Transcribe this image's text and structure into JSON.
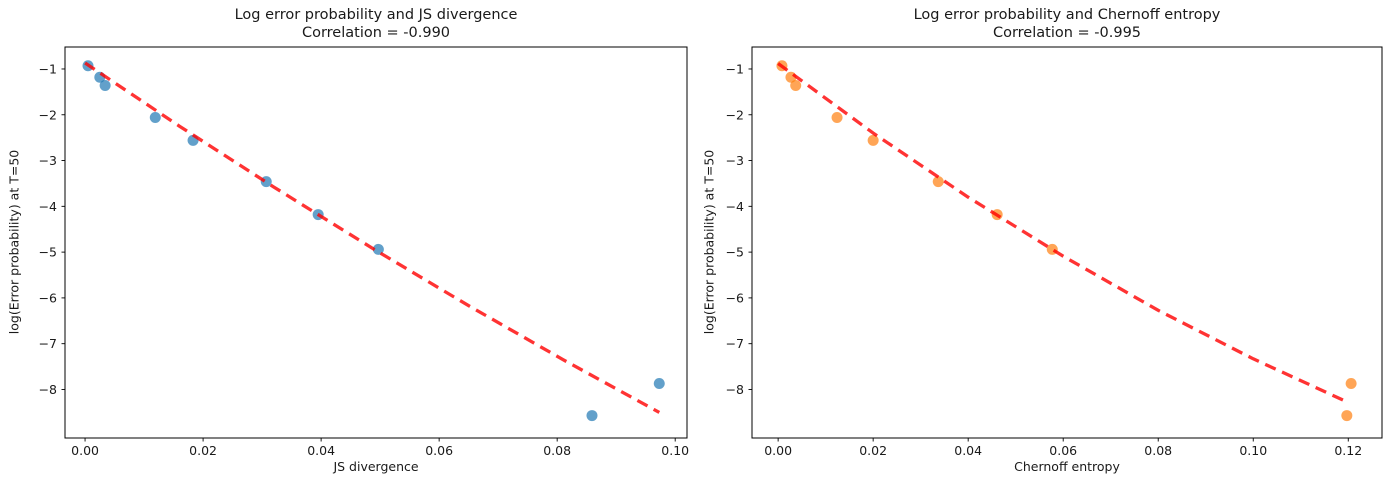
{
  "figure": {
    "background": "#ffffff",
    "text_color": "#1a1a1a"
  },
  "chart_data": [
    {
      "type": "scatter",
      "title": "Log error probability and JS divergence",
      "subtitle": "Correlation = -0.990",
      "correlation": -0.99,
      "xlabel": "JS divergence",
      "ylabel": "log(Error probability) at T=50",
      "xlim": [
        -0.0034,
        0.102
      ],
      "ylim": [
        -9.06,
        -0.52
      ],
      "xticks": [
        0,
        0.02,
        0.04,
        0.06,
        0.08,
        0.1
      ],
      "xtick_labels": [
        "0.00",
        "0.02",
        "0.04",
        "0.06",
        "0.08",
        "0.10"
      ],
      "yticks": [
        -1,
        -2,
        -3,
        -4,
        -5,
        -6,
        -7,
        -8
      ],
      "ytick_labels": [
        "−1",
        "−2",
        "−3",
        "−4",
        "−5",
        "−6",
        "−7",
        "−8"
      ],
      "grid": false,
      "legend": "none",
      "marker_color": "#1f77b4",
      "marker_opacity": 0.7,
      "marker_radius": 5.5,
      "points": {
        "x": [
          0.0005,
          0.0025,
          0.0034,
          0.0119,
          0.0183,
          0.0307,
          0.0395,
          0.0497,
          0.0859,
          0.0973
        ],
        "y": [
          -0.93,
          -1.18,
          -1.36,
          -2.06,
          -2.56,
          -3.46,
          -4.18,
          -4.94,
          -8.57,
          -7.87
        ]
      },
      "trendline": {
        "color": "#ff0000",
        "opacity": 0.8,
        "style": "dashed",
        "x": [
          0.0,
          0.016,
          0.032,
          0.049,
          0.065,
          0.081,
          0.0973
        ],
        "y": [
          -0.87,
          -2.25,
          -3.58,
          -4.94,
          -6.17,
          -7.35,
          -8.5
        ]
      }
    },
    {
      "type": "scatter",
      "title": "Log error probability and Chernoff entropy",
      "subtitle": "Correlation = -0.995",
      "correlation": -0.995,
      "xlabel": "Chernoff entropy",
      "ylabel": "log(Error probability) at T=50",
      "xlim": [
        -0.0055,
        0.1271
      ],
      "ylim": [
        -9.06,
        -0.52
      ],
      "xticks": [
        0,
        0.02,
        0.04,
        0.06,
        0.08,
        0.1,
        0.12
      ],
      "xtick_labels": [
        "0.00",
        "0.02",
        "0.04",
        "0.06",
        "0.08",
        "0.10",
        "0.12"
      ],
      "yticks": [
        -1,
        -2,
        -3,
        -4,
        -5,
        -6,
        -7,
        -8
      ],
      "ytick_labels": [
        "−1",
        "−2",
        "−3",
        "−4",
        "−5",
        "−6",
        "−7",
        "−8"
      ],
      "grid": false,
      "legend": "none",
      "marker_color": "#ff7f0e",
      "marker_opacity": 0.7,
      "marker_radius": 5.5,
      "points": {
        "x": [
          0.0008,
          0.0027,
          0.0037,
          0.0124,
          0.02,
          0.0337,
          0.0461,
          0.0577,
          0.1197,
          0.1206
        ],
        "y": [
          -0.93,
          -1.18,
          -1.36,
          -2.06,
          -2.56,
          -3.46,
          -4.18,
          -4.94,
          -8.57,
          -7.87
        ]
      },
      "trendline": {
        "color": "#ff0000",
        "opacity": 0.8,
        "style": "dashed",
        "x": [
          0.0,
          0.02,
          0.04,
          0.06,
          0.08,
          0.1,
          0.1193
        ],
        "y": [
          -0.88,
          -2.4,
          -3.8,
          -5.09,
          -6.27,
          -7.33,
          -8.25
        ]
      }
    }
  ]
}
